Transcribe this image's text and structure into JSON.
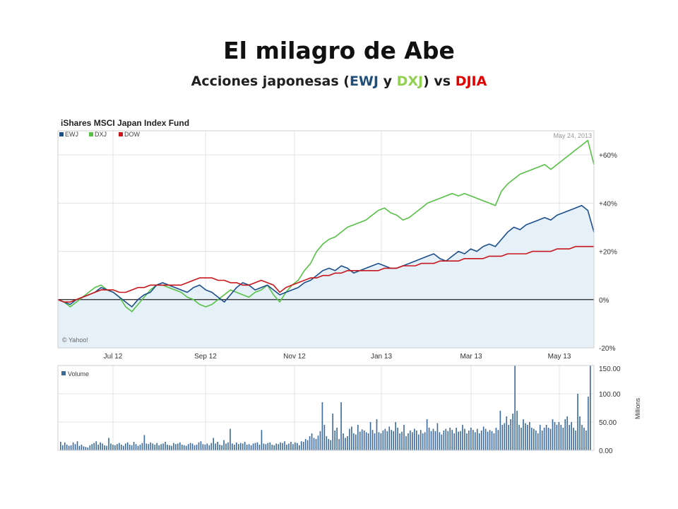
{
  "slide": {
    "title": "El milagro de Abe",
    "subtitle_parts": [
      {
        "text": "Acciones japonesas (",
        "color": "#1f1f1f"
      },
      {
        "text": "EWJ",
        "color": "#1f4e79"
      },
      {
        "text": " y ",
        "color": "#1f1f1f"
      },
      {
        "text": "DXJ",
        "color": "#92d050"
      },
      {
        "text": ") vs ",
        "color": "#1f1f1f"
      },
      {
        "text": "DJIA",
        "color": "#e00000"
      }
    ]
  },
  "chart_data": [
    {
      "type": "line",
      "title": "iShares MSCI Japan Index Fund",
      "date_label": "May 24, 2013",
      "watermark": "© Yahoo!",
      "x_ticks": [
        "Jul 12",
        "Sep 12",
        "Nov 12",
        "Jan 13",
        "Mar 13",
        "May 13"
      ],
      "y_ticks": [
        "+60%",
        "+40%",
        "+20%",
        "0%",
        "-20%"
      ],
      "ylim": [
        -20,
        70
      ],
      "grid": true,
      "legend_position": "top-left",
      "series": [
        {
          "name": "EWJ",
          "color": "#1c4f8a",
          "values": [
            0,
            -1,
            -2,
            0,
            1,
            2,
            3,
            5,
            4,
            3,
            1,
            -1,
            -3,
            0,
            2,
            3,
            6,
            7,
            6,
            5,
            4,
            3,
            5,
            6,
            4,
            3,
            1,
            -1,
            2,
            5,
            7,
            6,
            4,
            5,
            6,
            4,
            2,
            3,
            4,
            5,
            7,
            8,
            10,
            12,
            13,
            12,
            14,
            13,
            11,
            12,
            13,
            14,
            15,
            14,
            13,
            13,
            14,
            15,
            16,
            17,
            18,
            19,
            17,
            16,
            18,
            20,
            19,
            21,
            20,
            22,
            23,
            22,
            25,
            28,
            30,
            29,
            31,
            32,
            33,
            34,
            33,
            35,
            36,
            37,
            38,
            39,
            37,
            28
          ]
        },
        {
          "name": "DXJ",
          "color": "#56c145",
          "values": [
            0,
            -1,
            -3,
            -1,
            1,
            3,
            5,
            6,
            4,
            3,
            1,
            -3,
            -5,
            -2,
            1,
            4,
            6,
            6,
            5,
            4,
            3,
            1,
            0,
            -2,
            -3,
            -2,
            0,
            2,
            4,
            3,
            2,
            1,
            3,
            4,
            6,
            2,
            -1,
            3,
            6,
            8,
            12,
            15,
            20,
            23,
            25,
            26,
            28,
            30,
            31,
            32,
            33,
            35,
            37,
            38,
            36,
            35,
            33,
            34,
            36,
            38,
            40,
            41,
            42,
            43,
            44,
            43,
            44,
            43,
            42,
            41,
            40,
            39,
            45,
            48,
            50,
            52,
            53,
            54,
            55,
            56,
            54,
            56,
            58,
            60,
            62,
            64,
            66,
            56
          ]
        },
        {
          "name": "DOW",
          "color": "#c8171c",
          "values": [
            0,
            -1,
            -1,
            0,
            1,
            2,
            3,
            4,
            4,
            4,
            3,
            3,
            4,
            5,
            5,
            6,
            6,
            6,
            6,
            6,
            6,
            7,
            8,
            9,
            9,
            9,
            8,
            8,
            7,
            7,
            6,
            6,
            7,
            8,
            7,
            6,
            3,
            5,
            6,
            7,
            8,
            9,
            9,
            10,
            10,
            11,
            11,
            12,
            12,
            12,
            12,
            12,
            12,
            13,
            13,
            13,
            14,
            14,
            14,
            15,
            15,
            15,
            16,
            16,
            16,
            16,
            17,
            17,
            17,
            17,
            18,
            18,
            18,
            19,
            19,
            19,
            19,
            20,
            20,
            20,
            20,
            21,
            21,
            21,
            22,
            22,
            22,
            22
          ]
        }
      ]
    },
    {
      "type": "bar",
      "legend": "Volume",
      "unit_label": "Millions",
      "y_ticks": [
        "150.00",
        "100.00",
        "50.00",
        "0.00"
      ],
      "ylim": [
        0,
        150
      ],
      "color": "#3d6b9c",
      "values": [
        15,
        9,
        14,
        10,
        8,
        9,
        14,
        11,
        16,
        8,
        10,
        7,
        6,
        5,
        9,
        11,
        13,
        16,
        10,
        14,
        12,
        9,
        8,
        22,
        12,
        10,
        9,
        11,
        13,
        10,
        8,
        12,
        14,
        10,
        9,
        15,
        11,
        8,
        10,
        13,
        27,
        12,
        11,
        14,
        12,
        10,
        13,
        9,
        11,
        12,
        15,
        10,
        9,
        8,
        13,
        11,
        12,
        14,
        10,
        9,
        8,
        11,
        13,
        12,
        9,
        10,
        14,
        16,
        11,
        10,
        12,
        9,
        13,
        22,
        12,
        15,
        10,
        9,
        18,
        12,
        14,
        38,
        12,
        10,
        14,
        11,
        13,
        12,
        15,
        10,
        11,
        9,
        12,
        13,
        14,
        10,
        36,
        12,
        11,
        13,
        14,
        10,
        9,
        12,
        11,
        14,
        13,
        16,
        10,
        12,
        15,
        11,
        14,
        13,
        9,
        16,
        15,
        20,
        18,
        25,
        30,
        22,
        20,
        26,
        34,
        85,
        45,
        25,
        20,
        18,
        65,
        35,
        40,
        20,
        85,
        30,
        22,
        25,
        38,
        42,
        30,
        28,
        45,
        33,
        37,
        35,
        32,
        30,
        50,
        36,
        30,
        55,
        32,
        30,
        35,
        38,
        34,
        42,
        36,
        34,
        50,
        40,
        30,
        33,
        45,
        25,
        30,
        35,
        32,
        38,
        35,
        28,
        36,
        30,
        32,
        55,
        40,
        34,
        38,
        34,
        48,
        32,
        28,
        35,
        38,
        34,
        40,
        36,
        30,
        40,
        33,
        34,
        45,
        38,
        30,
        35,
        40,
        36,
        32,
        38,
        30,
        35,
        42,
        38,
        33,
        36,
        34,
        30,
        40,
        36,
        70,
        45,
        48,
        60,
        45,
        55,
        65,
        150,
        70,
        45,
        40,
        55,
        48,
        45,
        50,
        40,
        38,
        35,
        30,
        45,
        35,
        40,
        45,
        40,
        38,
        55,
        50,
        45,
        50,
        45,
        40,
        55,
        60,
        45,
        50,
        40,
        35,
        100,
        60,
        45,
        40,
        35,
        95,
        150
      ]
    }
  ]
}
